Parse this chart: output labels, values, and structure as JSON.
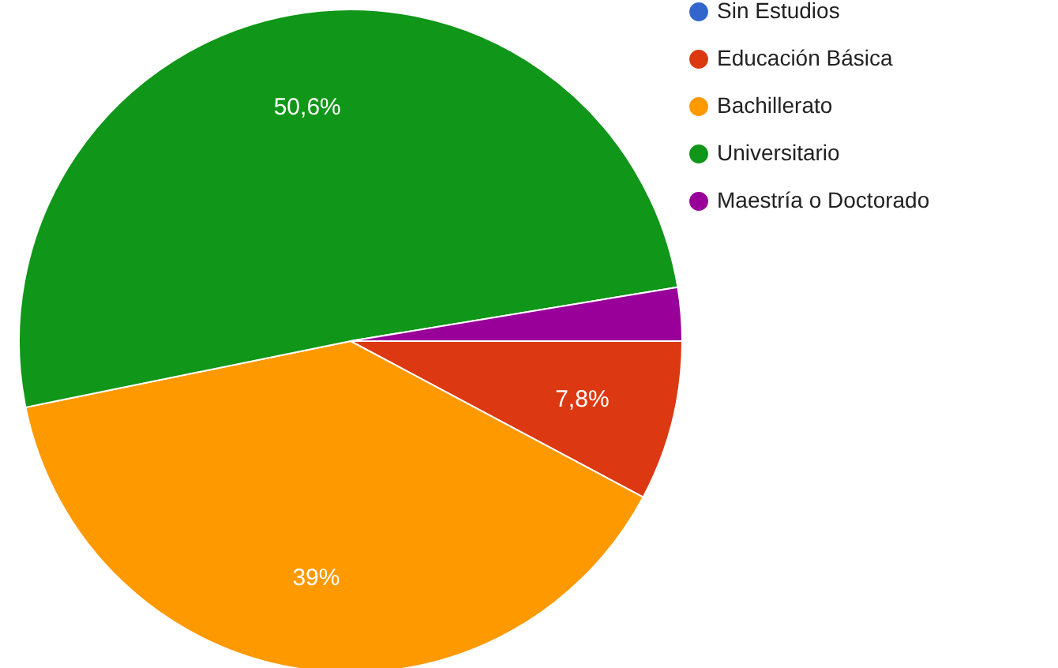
{
  "chart_data": {
    "type": "pie",
    "categories": [
      "Sin Estudios",
      "Educación Básica",
      "Bachillerato",
      "Universitario",
      "Maestría o Doctorado"
    ],
    "values": [
      0,
      7.8,
      39,
      50.6,
      2.6
    ],
    "colors": [
      "#3366cc",
      "#dc3912",
      "#ff9900",
      "#109618",
      "#990099"
    ],
    "value_labels": [
      null,
      "7,8%",
      "39%",
      "50,6%",
      null
    ],
    "legend": "top right"
  }
}
